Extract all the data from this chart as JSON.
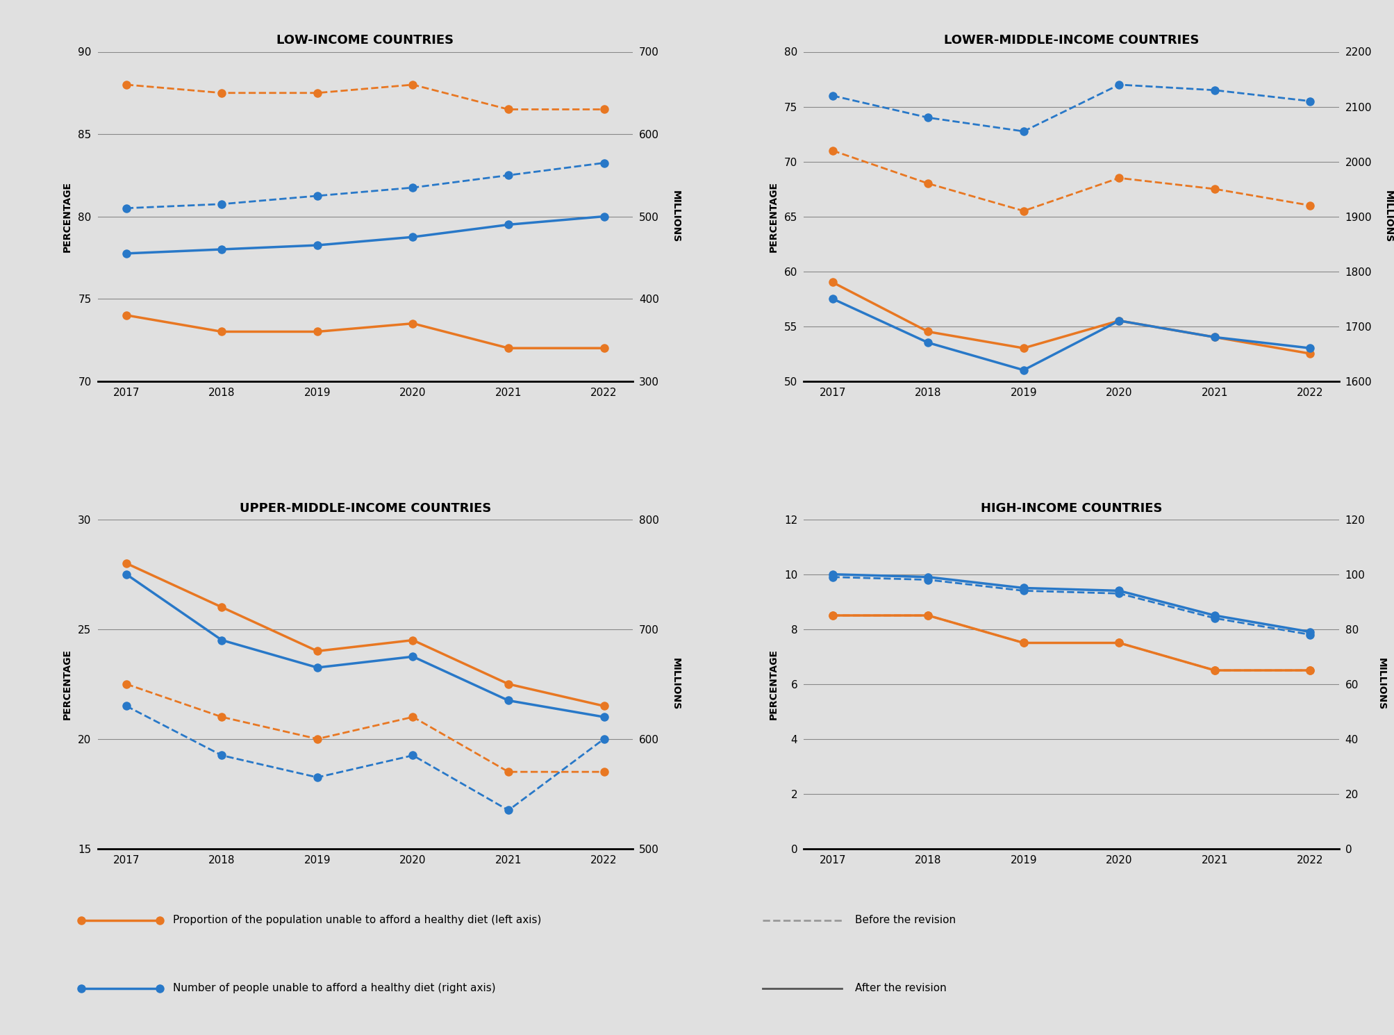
{
  "years": [
    2017,
    2018,
    2019,
    2020,
    2021,
    2022
  ],
  "background_color": "#e0e0e0",
  "orange_color": "#e87722",
  "blue_color": "#2878c8",
  "gray_dashed_color": "#999999",
  "gray_solid_color": "#555555",
  "low_income": {
    "title": "LOW-INCOME COUNTRIES",
    "yleft_label": "PERCENTAGE",
    "yright_label": "MILLIONS",
    "yleft_lim": [
      70,
      90
    ],
    "yright_lim": [
      300,
      700
    ],
    "yleft_ticks": [
      70,
      75,
      80,
      85,
      90
    ],
    "yright_ticks": [
      300,
      400,
      500,
      600,
      700
    ],
    "orange_after_pct": [
      74.0,
      73.0,
      73.0,
      73.5,
      72.0,
      72.0
    ],
    "orange_before_pct": [
      88.0,
      87.5,
      87.5,
      88.0,
      86.5,
      86.5
    ],
    "blue_after_mil": [
      455,
      460,
      465,
      475,
      490,
      500
    ],
    "blue_before_mil": [
      510,
      515,
      525,
      535,
      550,
      565
    ]
  },
  "lower_middle_income": {
    "title": "LOWER-MIDDLE-INCOME COUNTRIES",
    "yleft_label": "PERCENTAGE",
    "yright_label": "MILLIONS",
    "yleft_lim": [
      50,
      80
    ],
    "yright_lim": [
      1600,
      2200
    ],
    "yleft_ticks": [
      50,
      55,
      60,
      65,
      70,
      75,
      80
    ],
    "yright_ticks": [
      1600,
      1700,
      1800,
      1900,
      2000,
      2100,
      2200
    ],
    "orange_after_pct": [
      59.0,
      54.5,
      53.0,
      55.5,
      54.0,
      52.5
    ],
    "orange_before_pct": [
      71.0,
      68.0,
      65.5,
      68.5,
      67.5,
      66.0
    ],
    "blue_after_mil": [
      1750,
      1670,
      1620,
      1710,
      1680,
      1660
    ],
    "blue_before_mil": [
      2120,
      2080,
      2055,
      2140,
      2130,
      2110
    ]
  },
  "upper_middle_income": {
    "title": "UPPER-MIDDLE-INCOME COUNTRIES",
    "yleft_label": "PERCENTAGE",
    "yright_label": "MILLIONS",
    "yleft_lim": [
      15,
      30
    ],
    "yright_lim": [
      500,
      800
    ],
    "yleft_ticks": [
      15,
      20,
      25,
      30
    ],
    "yright_ticks": [
      500,
      600,
      700,
      800
    ],
    "orange_after_pct": [
      28.0,
      26.0,
      24.0,
      24.5,
      22.5,
      21.5
    ],
    "orange_before_pct": [
      22.5,
      21.0,
      20.0,
      21.0,
      18.5,
      18.5
    ],
    "blue_after_mil": [
      750,
      690,
      665,
      675,
      635,
      620
    ],
    "blue_before_mil": [
      630,
      585,
      565,
      585,
      535,
      600
    ]
  },
  "high_income": {
    "title": "HIGH-INCOME COUNTRIES",
    "yleft_label": "PERCENTAGE",
    "yright_label": "MILLIONS",
    "yleft_lim": [
      0,
      12
    ],
    "yright_lim": [
      0,
      120
    ],
    "yleft_ticks": [
      0,
      2,
      4,
      6,
      8,
      10,
      12
    ],
    "yright_ticks": [
      0,
      20,
      40,
      60,
      80,
      100,
      120
    ],
    "orange_after_pct": [
      8.5,
      8.5,
      7.5,
      7.5,
      6.5,
      6.5
    ],
    "orange_before_pct": [
      8.5,
      8.5,
      7.5,
      7.5,
      6.5,
      6.5
    ],
    "blue_after_mil": [
      100,
      99,
      95,
      94,
      85,
      79
    ],
    "blue_before_mil": [
      99,
      98,
      94,
      93,
      84,
      78
    ]
  },
  "legend": {
    "orange_label": "Proportion of the population unable to afford a healthy diet (left axis)",
    "blue_label": "Number of people unable to afford a healthy diet (right axis)",
    "before_label": "Before the revision",
    "after_label": "After the revision"
  }
}
